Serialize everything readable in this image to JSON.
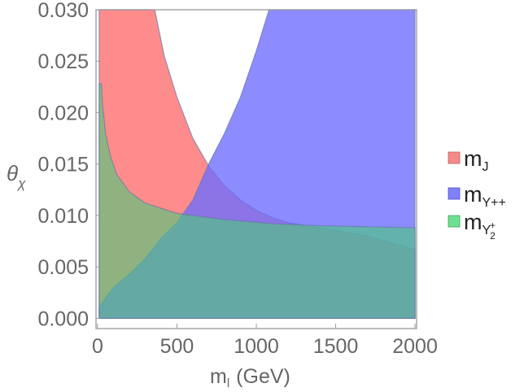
{
  "chart_data": {
    "type": "area",
    "title": "",
    "xlabel": "m",
    "xlabel_sub": "l",
    "xlabel_unit": "(GeV)",
    "ylabel": "θ",
    "ylabel_sub": "χ",
    "xlim": [
      -10,
      2010
    ],
    "ylim": [
      -0.001,
      0.03
    ],
    "x_ticks": [
      0,
      500,
      1000,
      1500,
      2000
    ],
    "x_tick_labels": [
      "0",
      "500",
      "1000",
      "1500",
      "2000"
    ],
    "y_ticks": [
      0.0,
      0.005,
      0.01,
      0.015,
      0.02,
      0.025,
      0.03
    ],
    "y_tick_labels": [
      "0.000",
      "0.005",
      "0.010",
      "0.015",
      "0.020",
      "0.025",
      "0.030"
    ],
    "legend_position": "right",
    "series": [
      {
        "name": "m_J",
        "label_main": "m",
        "label_sub": "J",
        "color": "#FF6B6B",
        "boundary": [
          {
            "x": 10,
            "y": 0.03
          },
          {
            "x": 360,
            "y": 0.03
          },
          {
            "x": 420,
            "y": 0.0255
          },
          {
            "x": 500,
            "y": 0.0215
          },
          {
            "x": 600,
            "y": 0.0175
          },
          {
            "x": 700,
            "y": 0.0148
          },
          {
            "x": 800,
            "y": 0.0129
          },
          {
            "x": 900,
            "y": 0.0115
          },
          {
            "x": 1000,
            "y": 0.0105
          },
          {
            "x": 1100,
            "y": 0.0098
          },
          {
            "x": 1200,
            "y": 0.0093
          },
          {
            "x": 1400,
            "y": 0.0088
          },
          {
            "x": 1700,
            "y": 0.008
          },
          {
            "x": 2000,
            "y": 0.0067
          },
          {
            "x": 2000,
            "y": 0.0
          },
          {
            "x": 10,
            "y": 0.0
          }
        ]
      },
      {
        "name": "m_Y++",
        "label_main": "m",
        "label_sub": "Y++",
        "color": "#6B6BFF",
        "boundary": [
          {
            "x": 1080,
            "y": 0.03
          },
          {
            "x": 2000,
            "y": 0.03
          },
          {
            "x": 2000,
            "y": 0.0
          },
          {
            "x": 10,
            "y": 0.0
          },
          {
            "x": 10,
            "y": 0.0011
          },
          {
            "x": 50,
            "y": 0.002
          },
          {
            "x": 100,
            "y": 0.003
          },
          {
            "x": 200,
            "y": 0.0043
          },
          {
            "x": 300,
            "y": 0.0058
          },
          {
            "x": 400,
            "y": 0.0078
          },
          {
            "x": 500,
            "y": 0.0093
          },
          {
            "x": 600,
            "y": 0.0115
          },
          {
            "x": 700,
            "y": 0.015
          },
          {
            "x": 800,
            "y": 0.018
          },
          {
            "x": 900,
            "y": 0.0215
          },
          {
            "x": 1000,
            "y": 0.026
          }
        ]
      },
      {
        "name": "m_Y2+",
        "label_main": "m",
        "label_sub": "Y",
        "label_sub2": "2",
        "label_sup": "+",
        "color": "#4CC97A",
        "boundary": [
          {
            "x": 25,
            "y": 0.0228
          },
          {
            "x": 30,
            "y": 0.021
          },
          {
            "x": 50,
            "y": 0.018
          },
          {
            "x": 80,
            "y": 0.0158
          },
          {
            "x": 120,
            "y": 0.014
          },
          {
            "x": 200,
            "y": 0.0123
          },
          {
            "x": 300,
            "y": 0.0112
          },
          {
            "x": 500,
            "y": 0.0102
          },
          {
            "x": 800,
            "y": 0.0096
          },
          {
            "x": 1100,
            "y": 0.0092
          },
          {
            "x": 1400,
            "y": 0.009
          },
          {
            "x": 1700,
            "y": 0.0089
          },
          {
            "x": 2000,
            "y": 0.0088
          },
          {
            "x": 2000,
            "y": 0.0
          },
          {
            "x": 10,
            "y": 0.0
          },
          {
            "x": 10,
            "y": 0.0228
          }
        ]
      }
    ]
  }
}
